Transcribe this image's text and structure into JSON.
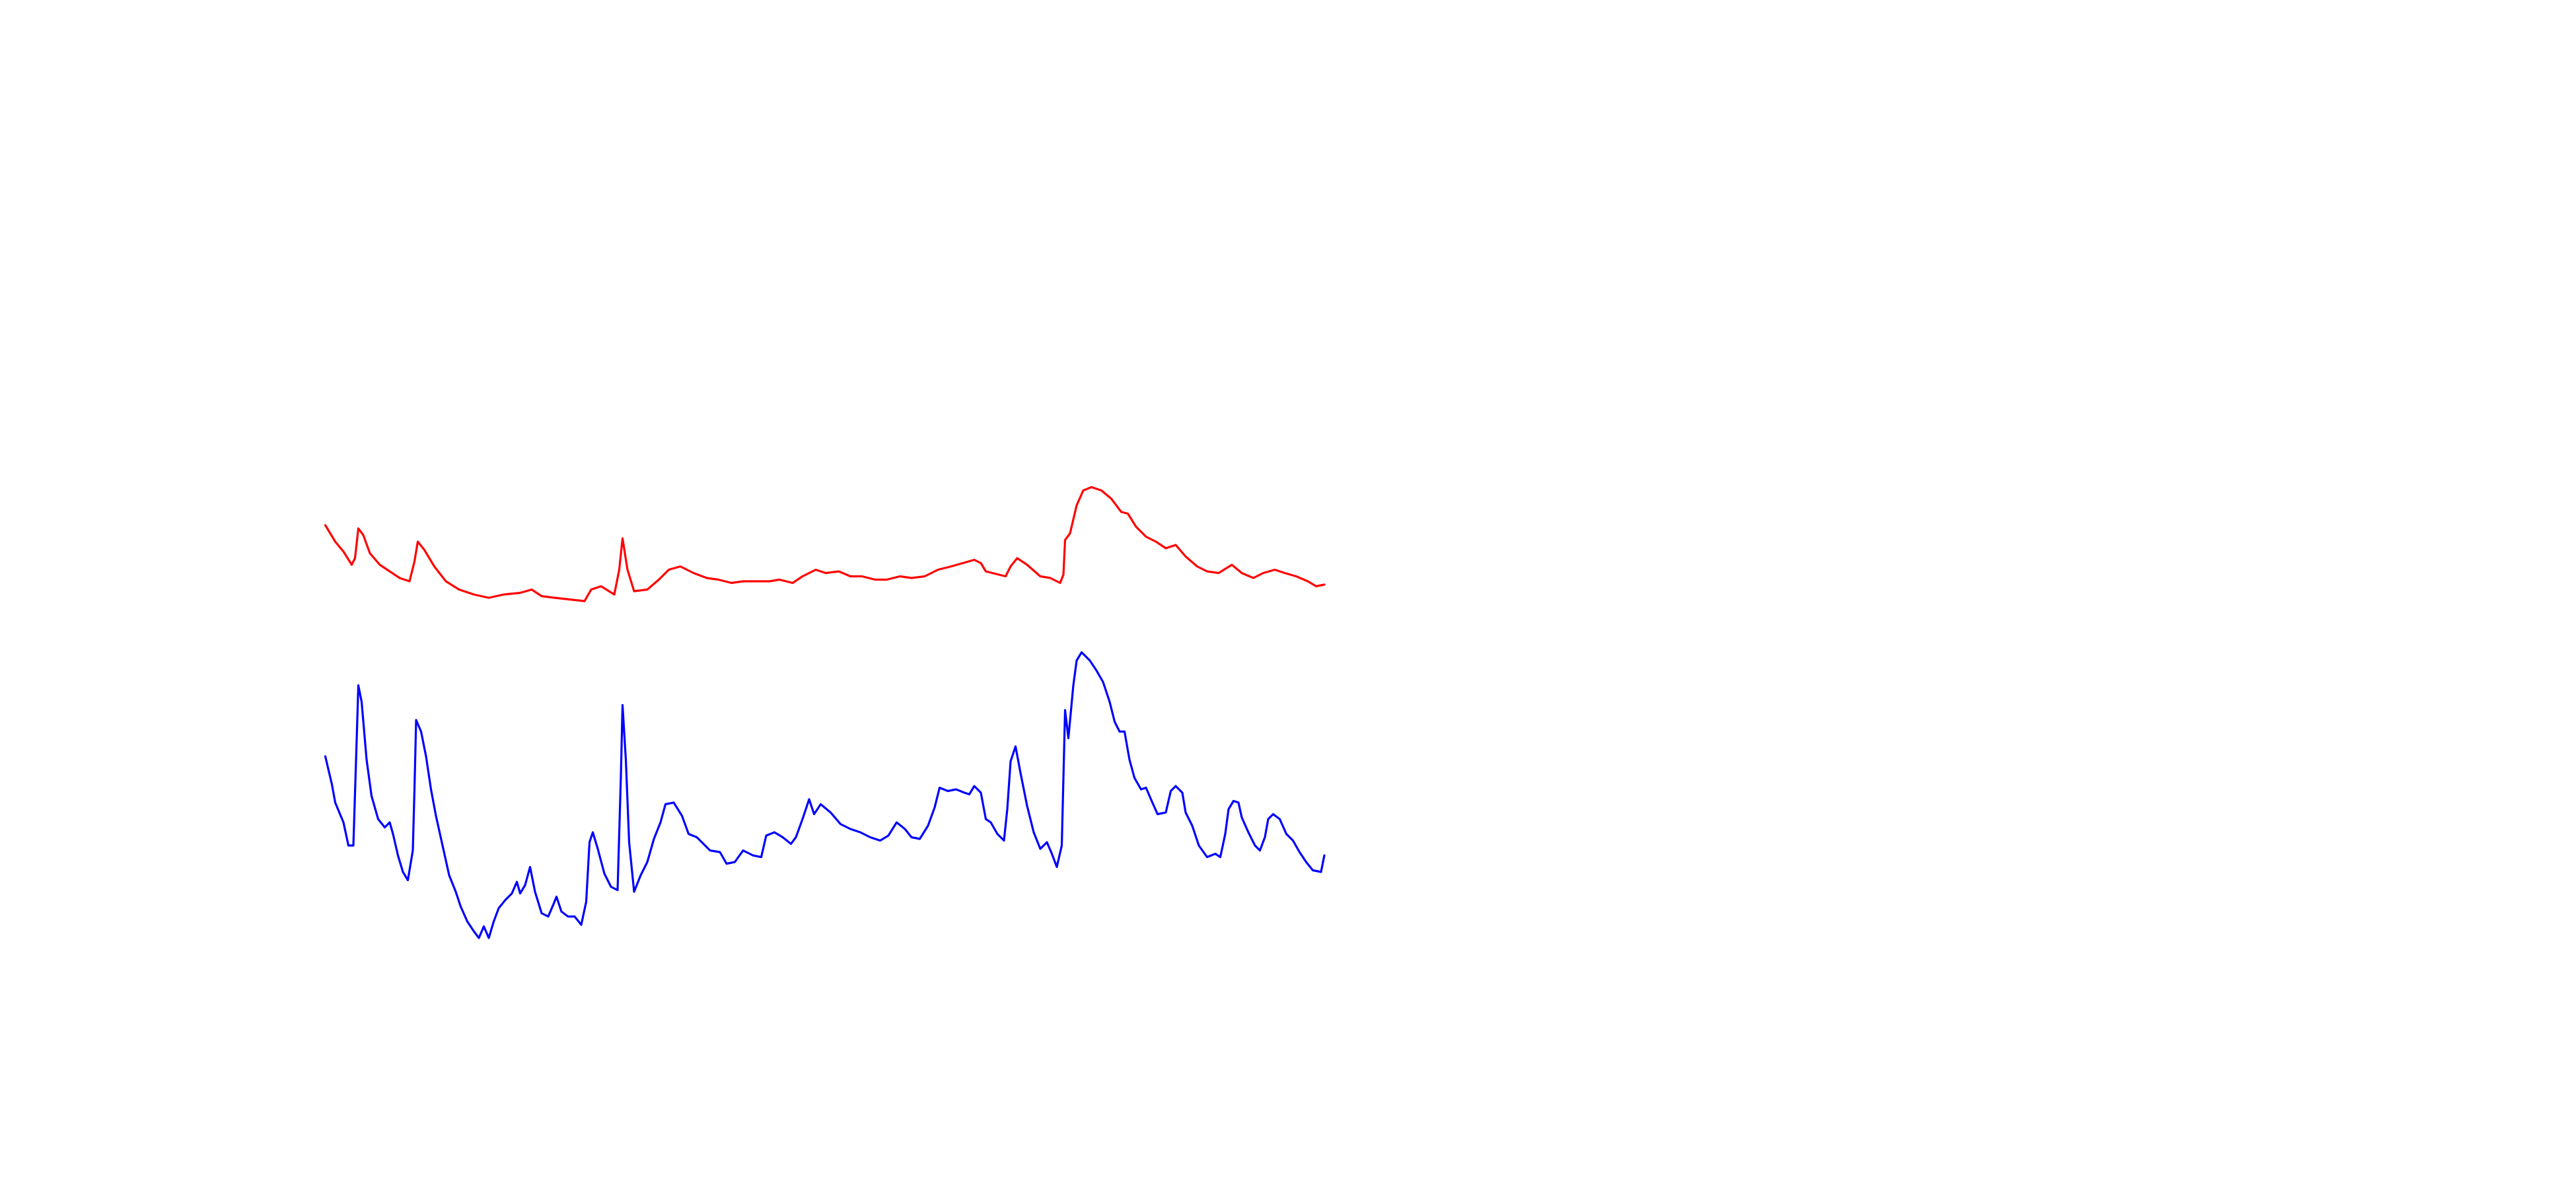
{
  "chart_data": {
    "type": "line",
    "xlim": [
      0,
      1560
    ],
    "ylim": [
      0,
      720
    ],
    "series": [
      {
        "color": "#ff0000",
        "x": [
          197,
          203,
          208,
          213,
          215,
          217,
          220,
          224,
          230,
          236,
          242,
          248,
          251,
          253,
          257,
          263,
          270,
          278,
          287,
          296,
          305,
          315,
          322,
          328,
          336,
          345,
          354,
          358,
          364,
          372,
          375,
          377,
          380,
          384,
          392,
          399,
          405,
          412,
          420,
          428,
          435,
          443,
          450,
          458,
          466,
          472,
          480,
          486,
          494,
          500,
          508,
          515,
          522,
          530,
          537,
          545,
          552,
          560,
          568,
          576,
          583,
          590,
          594,
          597,
          605,
          609,
          612,
          616,
          622,
          630,
          636,
          642,
          644,
          645,
          648,
          652,
          656,
          661,
          667,
          673,
          679,
          683,
          688,
          694,
          700,
          706,
          712,
          718,
          725,
          731,
          738,
          746,
          752,
          759,
          765,
          772,
          778,
          785,
          792,
          797,
          802
        ],
        "values": [
          402,
          392,
          386,
          378,
          382,
          400,
          396,
          385,
          378,
          374,
          370,
          368,
          380,
          392,
          387,
          377,
          368,
          363,
          360,
          358,
          360,
          361,
          363,
          359,
          358,
          357,
          356,
          363,
          365,
          360,
          375,
          394,
          375,
          362,
          363,
          369,
          375,
          377,
          373,
          370,
          369,
          367,
          368,
          368,
          368,
          369,
          367,
          371,
          375,
          373,
          374,
          371,
          371,
          369,
          369,
          371,
          370,
          371,
          375,
          377,
          379,
          381,
          379,
          374,
          372,
          371,
          377,
          382,
          378,
          371,
          370,
          367,
          372,
          393,
          397,
          414,
          423,
          425,
          423,
          418,
          410,
          409,
          401,
          395,
          392,
          388,
          390,
          383,
          377,
          374,
          373,
          378,
          373,
          370,
          373,
          375,
          373,
          371,
          368,
          365,
          366
        ]
      },
      {
        "color": "#0000ff",
        "x": [
          197,
          201,
          203,
          208,
          211,
          214,
          216,
          217,
          219,
          222,
          225,
          229,
          233,
          236,
          238,
          241,
          244,
          247,
          250,
          251,
          252,
          255,
          258,
          261,
          264,
          268,
          272,
          276,
          279,
          283,
          287,
          290,
          293,
          296,
          299,
          302,
          306,
          310,
          313,
          315,
          318,
          321,
          324,
          328,
          332,
          335,
          337,
          340,
          344,
          348,
          352,
          355,
          357,
          359,
          362,
          366,
          370,
          374,
          376,
          377,
          379,
          381,
          384,
          388,
          392,
          396,
          400,
          403,
          408,
          413,
          417,
          422,
          426,
          430,
          436,
          440,
          445,
          450,
          456,
          461,
          464,
          469,
          474,
          479,
          482,
          486,
          490,
          493,
          497,
          503,
          509,
          515,
          521,
          527,
          533,
          538,
          543,
          548,
          552,
          557,
          562,
          566,
          569,
          574,
          579,
          584,
          587,
          590,
          594,
          597,
          600,
          604,
          608,
          610,
          612,
          615,
          618,
          622,
          626,
          630,
          634,
          637,
          640,
          643,
          645,
          647,
          650,
          652,
          655,
          660,
          664,
          668,
          672,
          675,
          678,
          681,
          684,
          687,
          691,
          694,
          697,
          701,
          706,
          709,
          712,
          716,
          718,
          722,
          726,
          731,
          736,
          739,
          742,
          744,
          747,
          750,
          752,
          756,
          760,
          763,
          766,
          768,
          771,
          775,
          779,
          783,
          787,
          791,
          795,
          800,
          802
        ],
        "values": [
          262,
          245,
          234,
          222,
          208,
          208,
          272,
          305,
          295,
          260,
          238,
          224,
          219,
          222,
          215,
          202,
          192,
          187,
          205,
          242,
          284,
          277,
          262,
          242,
          226,
          208,
          190,
          180,
          171,
          162,
          156,
          152,
          159,
          152,
          162,
          170,
          175,
          179,
          186,
          179,
          184,
          195,
          180,
          167,
          165,
          172,
          177,
          168,
          165,
          165,
          160,
          174,
          210,
          216,
          206,
          191,
          183,
          181,
          250,
          293,
          260,
          210,
          180,
          190,
          198,
          212,
          222,
          233,
          234,
          226,
          215,
          213,
          209,
          205,
          204,
          197,
          198,
          205,
          202,
          201,
          214,
          216,
          213,
          209,
          213,
          224,
          236,
          227,
          233,
          228,
          221,
          218,
          216,
          213,
          211,
          214,
          222,
          218,
          213,
          212,
          220,
          231,
          243,
          241,
          242,
          240,
          239,
          244,
          240,
          224,
          222,
          215,
          211,
          230,
          259,
          268,
          252,
          232,
          216,
          206,
          210,
          203,
          195,
          208,
          290,
          273,
          305,
          320,
          325,
          320,
          314,
          307,
          295,
          283,
          277,
          277,
          260,
          249,
          242,
          243,
          236,
          227,
          228,
          241,
          244,
          240,
          228,
          220,
          208,
          201,
          203,
          201,
          215,
          230,
          235,
          234,
          225,
          216,
          208,
          205,
          213,
          224,
          227,
          224,
          215,
          211,
          204,
          198,
          193,
          192,
          202
        ]
      }
    ]
  }
}
